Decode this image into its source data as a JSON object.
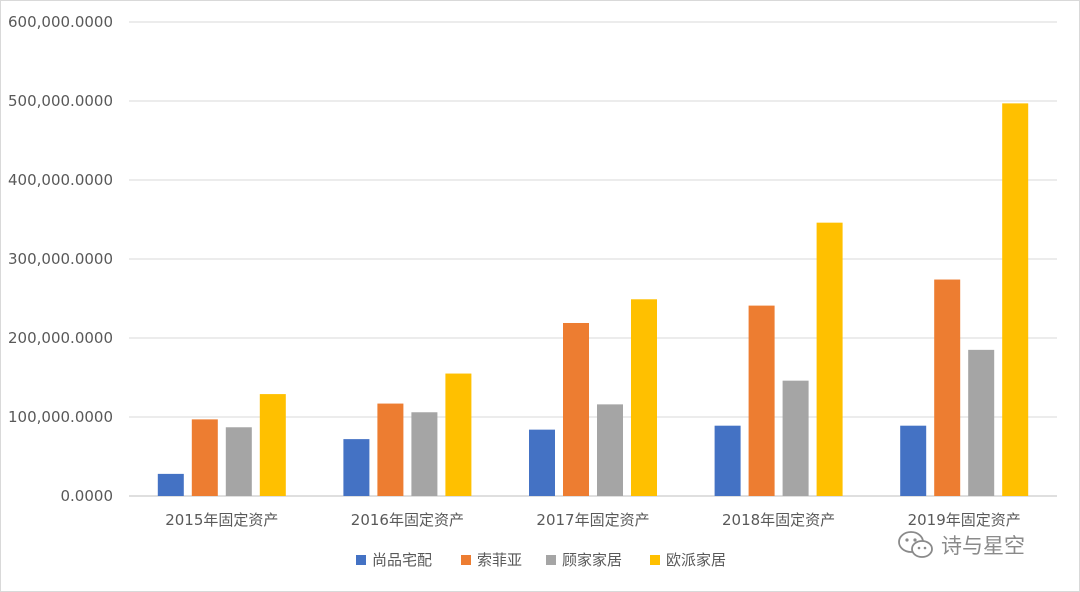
{
  "chart_data": {
    "type": "bar",
    "title": "",
    "xlabel": "",
    "ylabel": "",
    "categories": [
      "2015年固定资产",
      "2016年固定资产",
      "2017年固定资产",
      "2018年固定资产",
      "2019年固定资产"
    ],
    "series": [
      {
        "name": "尚品宅配",
        "color": "#4472C4",
        "values": [
          28000,
          72000,
          84000,
          89000,
          89000
        ]
      },
      {
        "name": "索菲亚",
        "color": "#ED7D31",
        "values": [
          97000,
          117000,
          219000,
          241000,
          274000
        ]
      },
      {
        "name": "顾家家居",
        "color": "#A5A5A5",
        "values": [
          87000,
          106000,
          116000,
          146000,
          185000
        ]
      },
      {
        "name": "欧派家居",
        "color": "#FFC000",
        "values": [
          129000,
          155000,
          249000,
          346000,
          497000
        ]
      }
    ],
    "ylim": [
      0,
      600000
    ],
    "yticks": [
      0,
      100000,
      200000,
      300000,
      400000,
      500000,
      600000
    ],
    "ytick_labels": [
      "0.0000",
      "100,000.0000",
      "200,000.0000",
      "300,000.0000",
      "400,000.0000",
      "500,000.0000",
      "600,000.0000"
    ],
    "grid": true,
    "legend_position": "bottom"
  },
  "watermark": {
    "text": "诗与星空",
    "icon": "wechat-icon"
  }
}
